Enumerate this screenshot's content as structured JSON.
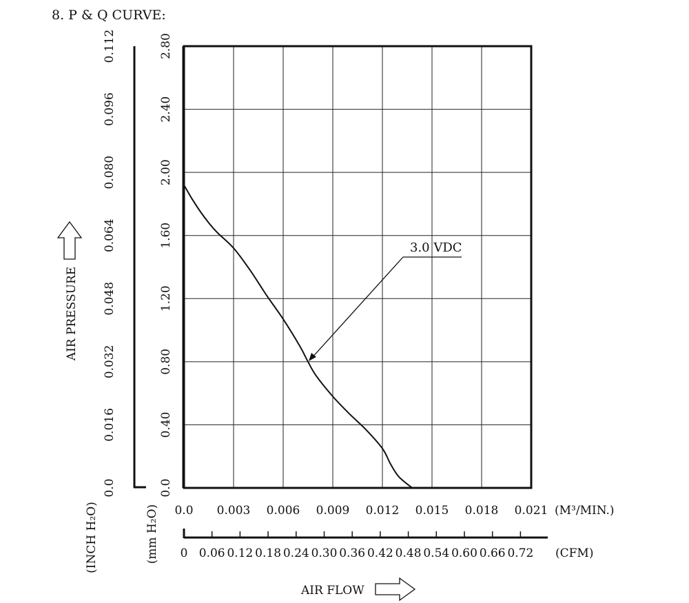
{
  "heading": "8. P & Q CURVE:",
  "chart_data": {
    "type": "line",
    "series": [
      {
        "name": "3.0 VDC",
        "x": [
          0.0,
          0.0005,
          0.001,
          0.0015,
          0.002,
          0.003,
          0.004,
          0.005,
          0.006,
          0.007,
          0.0075,
          0.008,
          0.009,
          0.01,
          0.011,
          0.012,
          0.0125,
          0.013,
          0.0138
        ],
        "y": [
          1.92,
          1.83,
          1.75,
          1.68,
          1.62,
          1.52,
          1.38,
          1.22,
          1.07,
          0.9,
          0.8,
          0.71,
          0.58,
          0.47,
          0.37,
          0.25,
          0.15,
          0.07,
          0.0
        ]
      }
    ],
    "xlabel": "AIR FLOW",
    "ylabel": "AIR PRESSURE",
    "x_unit": "(M³/MIN.)",
    "cfm_unit": "(CFM)",
    "mm_unit": "(mm H₂O)",
    "inch_unit": "(INCH H₂O)",
    "xlim": [
      0,
      0.021
    ],
    "ylim": [
      0,
      2.8
    ],
    "x_ticks": [
      "0.0",
      "0.003",
      "0.006",
      "0.009",
      "0.012",
      "0.015",
      "0.018",
      "0.021"
    ],
    "cfm_ticks": [
      "0",
      "0.06",
      "0.12",
      "0.18",
      "0.24",
      "0.30",
      "0.36",
      "0.42",
      "0.48",
      "0.54",
      "0.60",
      "0.66",
      "0.72"
    ],
    "mm_ticks": [
      "0.0",
      "0.40",
      "0.80",
      "1.20",
      "1.60",
      "2.00",
      "2.40",
      "2.80"
    ],
    "inch_ticks": [
      "0.0",
      "0.016",
      "0.032",
      "0.048",
      "0.064",
      "0.080",
      "0.096",
      "0.112"
    ],
    "grid": true,
    "annotation": "3.0 VDC"
  }
}
